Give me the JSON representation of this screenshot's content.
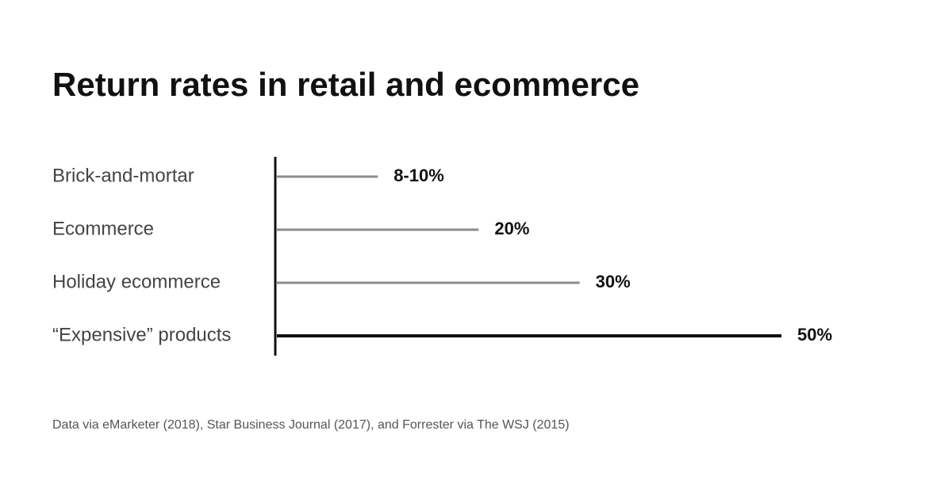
{
  "chart_data": {
    "type": "bar",
    "orientation": "horizontal",
    "title": "Return rates in retail and ecommerce",
    "categories": [
      "Brick-and-mortar",
      "Ecommerce",
      "Holiday ecommerce",
      "“Expensive” products"
    ],
    "values": [
      10,
      20,
      30,
      50
    ],
    "value_labels": [
      "8-10%",
      "20%",
      "30%",
      "50%"
    ],
    "colors": [
      "#8c8c8c",
      "#8c8c8c",
      "#8c8c8c",
      "#111111"
    ],
    "source": "Data via eMarketer (2018), Star Business Journal (2017), and Forrester via The WSJ (2015)"
  }
}
